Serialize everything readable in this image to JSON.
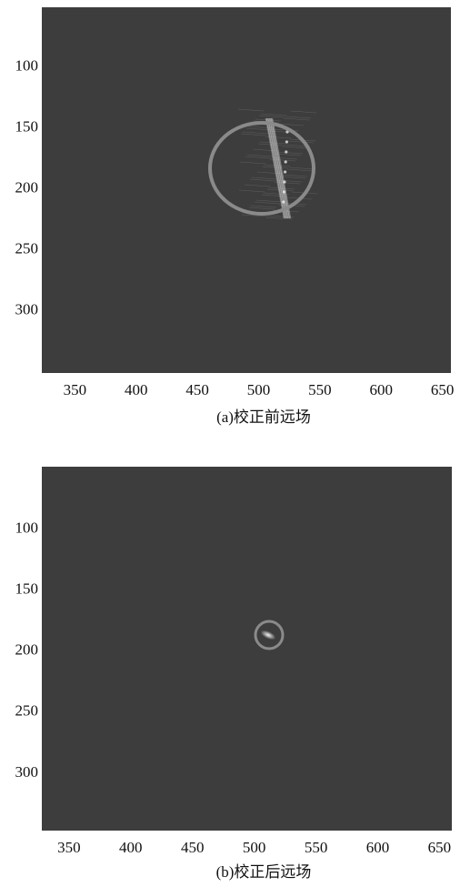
{
  "chart_data": [
    {
      "type": "image",
      "caption": "(a)校正前远场",
      "color": "#3d3d3d",
      "xlim": [
        323,
        657
      ],
      "ylim": [
        51,
        351
      ],
      "xticks": [
        350,
        400,
        450,
        500,
        550,
        600,
        650
      ],
      "yticks": [
        100,
        150,
        200,
        250,
        300
      ]
    },
    {
      "type": "image",
      "caption": "(b)校正后远场",
      "color": "#3d3d3d",
      "xlim": [
        328,
        660
      ],
      "ylim": [
        49,
        347
      ],
      "xticks": [
        350,
        400,
        450,
        500,
        550,
        600,
        650
      ],
      "yticks": [
        100,
        150,
        200,
        250,
        300
      ]
    }
  ]
}
